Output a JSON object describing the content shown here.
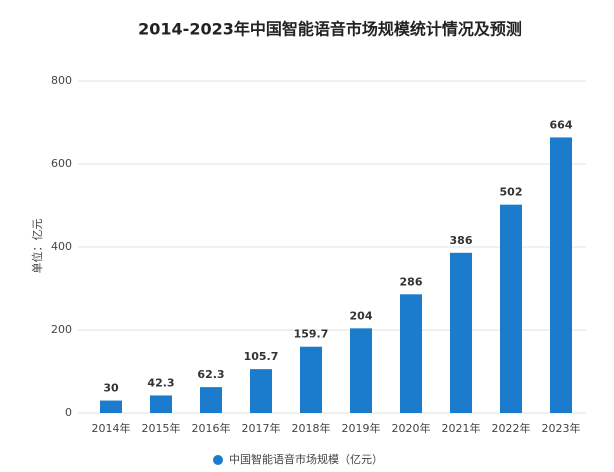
{
  "chart_data": {
    "type": "bar",
    "title": "2014-2023年中国智能语音市场规模统计情况及预测",
    "y_label": "单位：亿元",
    "categories": [
      "2014年",
      "2015年",
      "2016年",
      "2017年",
      "2018年",
      "2019年",
      "2020年",
      "2021年",
      "2022年",
      "2023年"
    ],
    "series": [
      {
        "name": "中国智能语音市场规模（亿元）",
        "color": "#1b7bcc",
        "values": [
          30,
          42.3,
          62.3,
          105.7,
          159.7,
          204,
          286,
          386,
          502,
          664
        ]
      }
    ],
    "ylim": [
      0,
      800
    ],
    "yticks": [
      0,
      200,
      400,
      600,
      800
    ],
    "grid": true,
    "legend": "bottom"
  }
}
